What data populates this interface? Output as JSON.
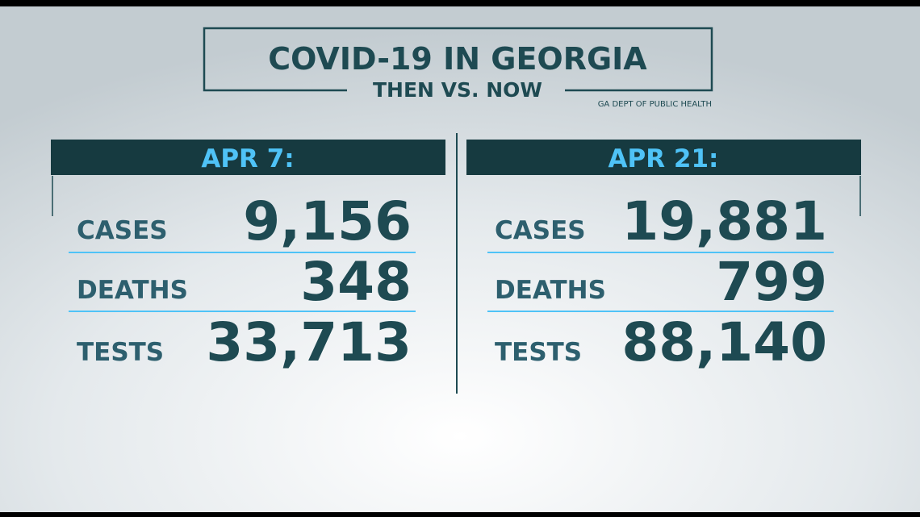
{
  "header": {
    "title": "COVID-19 IN GEORGIA",
    "subtitle": "THEN VS. NOW",
    "source": "GA DEPT OF PUBLIC HEALTH"
  },
  "panels": [
    {
      "date": "APR 7:",
      "rows": [
        {
          "label": "CASES",
          "value": "9,156"
        },
        {
          "label": "DEATHS",
          "value": "348"
        },
        {
          "label": "TESTS",
          "value": "33,713"
        }
      ]
    },
    {
      "date": "APR 21:",
      "rows": [
        {
          "label": "CASES",
          "value": "19,881"
        },
        {
          "label": "DEATHS",
          "value": "799"
        },
        {
          "label": "TESTS",
          "value": "88,140"
        }
      ]
    }
  ]
}
